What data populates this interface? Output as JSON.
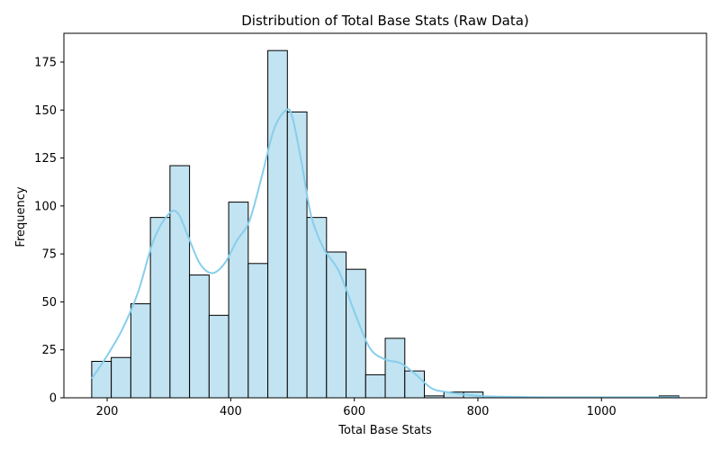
{
  "chart_data": {
    "type": "bar",
    "subtype": "histogram-with-kde",
    "title": "Distribution of Total Base Stats (Raw Data)",
    "xlabel": "Total Base Stats",
    "ylabel": "Frequency",
    "xlim": [
      130,
      1170
    ],
    "ylim": [
      0,
      190
    ],
    "xticks": [
      200,
      400,
      600,
      800,
      1000
    ],
    "yticks": [
      0,
      25,
      50,
      75,
      100,
      125,
      150,
      175
    ],
    "bin_start": 175,
    "bin_width": 31.67,
    "values": [
      19,
      21,
      49,
      94,
      121,
      64,
      43,
      102,
      70,
      181,
      149,
      94,
      76,
      67,
      12,
      31,
      14,
      1,
      3,
      3,
      0,
      0,
      0,
      0,
      0,
      0,
      0,
      0,
      0,
      1
    ],
    "kde": {
      "x": [
        175,
        200,
        225,
        250,
        275,
        300,
        315,
        330,
        350,
        370,
        390,
        410,
        430,
        450,
        470,
        490,
        500,
        515,
        530,
        550,
        575,
        600,
        625,
        650,
        675,
        700,
        725,
        750,
        800,
        850,
        900,
        1000,
        1125
      ],
      "y": [
        10,
        22,
        36,
        55,
        82,
        96,
        96,
        85,
        70,
        65,
        70,
        82,
        92,
        115,
        140,
        150,
        146,
        122,
        95,
        78,
        66,
        45,
        26,
        20,
        18,
        12,
        5,
        3,
        1,
        0.5,
        0.3,
        0.3,
        0.3
      ]
    },
    "colors": {
      "bar_fill": "#c2e3f1",
      "bar_edge": "#000000",
      "kde_line": "#87ceeb"
    },
    "grid": false,
    "legend": "none"
  }
}
